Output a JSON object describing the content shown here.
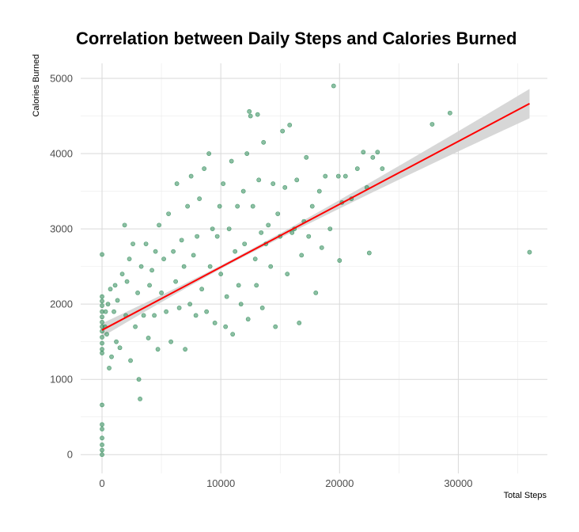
{
  "chart_data": {
    "type": "scatter",
    "title": "Correlation between Daily Steps and Calories Burned",
    "xlabel": "Total Steps",
    "ylabel": "Calories Burned",
    "xlim": [
      -1800,
      37500
    ],
    "ylim": [
      -250,
      5200
    ],
    "x_ticks": [
      0,
      10000,
      20000,
      30000
    ],
    "x_tick_labels": [
      "0",
      "10000",
      "20000",
      "30000"
    ],
    "y_ticks": [
      0,
      1000,
      2000,
      3000,
      4000,
      5000
    ],
    "y_tick_labels": [
      "0",
      "1000",
      "2000",
      "3000",
      "4000",
      "5000"
    ],
    "grid": true,
    "point_color": "#2e8b57",
    "line_color": "#ff0000",
    "band_color": "#d3d3d3",
    "regression": {
      "x_start": 0,
      "y_start": 1655,
      "x_end": 36000,
      "y_end": 4665,
      "ci_start": 90,
      "ci_end": 195
    },
    "series": [
      {
        "values": [
          [
            0,
            0
          ],
          [
            0,
            60
          ],
          [
            0,
            130
          ],
          [
            0,
            220
          ],
          [
            0,
            340
          ],
          [
            0,
            400
          ],
          [
            0,
            660
          ],
          [
            0,
            1350
          ],
          [
            0,
            1400
          ],
          [
            0,
            1480
          ],
          [
            0,
            1560
          ],
          [
            0,
            1640
          ],
          [
            0,
            1700
          ],
          [
            0,
            1760
          ],
          [
            0,
            1830
          ],
          [
            0,
            1900
          ],
          [
            0,
            1980
          ],
          [
            0,
            2040
          ],
          [
            0,
            2100
          ],
          [
            0,
            2660
          ],
          [
            250,
            1700
          ],
          [
            300,
            1900
          ],
          [
            400,
            1600
          ],
          [
            500,
            2000
          ],
          [
            600,
            1150
          ],
          [
            700,
            2200
          ],
          [
            800,
            1300
          ],
          [
            1000,
            1900
          ],
          [
            1100,
            2250
          ],
          [
            1200,
            1500
          ],
          [
            1300,
            2050
          ],
          [
            1500,
            1420
          ],
          [
            1700,
            2400
          ],
          [
            1900,
            3050
          ],
          [
            2000,
            1850
          ],
          [
            2100,
            2300
          ],
          [
            2300,
            2600
          ],
          [
            2400,
            1250
          ],
          [
            2600,
            2800
          ],
          [
            2800,
            1700
          ],
          [
            3000,
            2150
          ],
          [
            3100,
            1000
          ],
          [
            3200,
            740
          ],
          [
            3300,
            2500
          ],
          [
            3500,
            1850
          ],
          [
            3700,
            2800
          ],
          [
            3900,
            1550
          ],
          [
            4000,
            2250
          ],
          [
            4200,
            2450
          ],
          [
            4400,
            1850
          ],
          [
            4500,
            2700
          ],
          [
            4700,
            1400
          ],
          [
            4800,
            3050
          ],
          [
            5000,
            2150
          ],
          [
            5200,
            2600
          ],
          [
            5400,
            1900
          ],
          [
            5600,
            3200
          ],
          [
            5800,
            1500
          ],
          [
            6000,
            2700
          ],
          [
            6200,
            2300
          ],
          [
            6300,
            3600
          ],
          [
            6500,
            1950
          ],
          [
            6700,
            2850
          ],
          [
            6900,
            2500
          ],
          [
            7000,
            1400
          ],
          [
            7200,
            3300
          ],
          [
            7400,
            2000
          ],
          [
            7500,
            3700
          ],
          [
            7700,
            2650
          ],
          [
            7900,
            1850
          ],
          [
            8000,
            2900
          ],
          [
            8200,
            3400
          ],
          [
            8400,
            2200
          ],
          [
            8600,
            3800
          ],
          [
            8800,
            1900
          ],
          [
            9000,
            4000
          ],
          [
            9100,
            2500
          ],
          [
            9300,
            3000
          ],
          [
            9500,
            1750
          ],
          [
            9700,
            2900
          ],
          [
            9900,
            3300
          ],
          [
            10000,
            2400
          ],
          [
            10200,
            3600
          ],
          [
            10400,
            1700
          ],
          [
            10500,
            2100
          ],
          [
            10700,
            3000
          ],
          [
            10900,
            3900
          ],
          [
            11000,
            1600
          ],
          [
            11200,
            2700
          ],
          [
            11400,
            3300
          ],
          [
            11500,
            2250
          ],
          [
            11700,
            2000
          ],
          [
            11900,
            3500
          ],
          [
            12000,
            2800
          ],
          [
            12200,
            4000
          ],
          [
            12300,
            1800
          ],
          [
            12400,
            4560
          ],
          [
            12500,
            4500
          ],
          [
            12700,
            3300
          ],
          [
            12900,
            2600
          ],
          [
            13000,
            2250
          ],
          [
            13100,
            4520
          ],
          [
            13200,
            3650
          ],
          [
            13400,
            2950
          ],
          [
            13500,
            1950
          ],
          [
            13600,
            4150
          ],
          [
            13800,
            2800
          ],
          [
            14000,
            3050
          ],
          [
            14200,
            2500
          ],
          [
            14400,
            3600
          ],
          [
            14600,
            1700
          ],
          [
            14800,
            3200
          ],
          [
            15000,
            2900
          ],
          [
            15200,
            4300
          ],
          [
            15400,
            3550
          ],
          [
            15600,
            2400
          ],
          [
            15800,
            4380
          ],
          [
            16000,
            2950
          ],
          [
            16200,
            3000
          ],
          [
            16400,
            3650
          ],
          [
            16600,
            1750
          ],
          [
            16800,
            2650
          ],
          [
            17000,
            3100
          ],
          [
            17200,
            3950
          ],
          [
            17400,
            2900
          ],
          [
            17700,
            3300
          ],
          [
            18000,
            2150
          ],
          [
            18300,
            3500
          ],
          [
            18500,
            2750
          ],
          [
            18800,
            3700
          ],
          [
            19200,
            3000
          ],
          [
            19500,
            4900
          ],
          [
            19900,
            3700
          ],
          [
            20000,
            2580
          ],
          [
            20200,
            3350
          ],
          [
            20500,
            3700
          ],
          [
            21000,
            3400
          ],
          [
            21500,
            3800
          ],
          [
            22000,
            4020
          ],
          [
            22300,
            3550
          ],
          [
            22500,
            2680
          ],
          [
            22800,
            3950
          ],
          [
            23200,
            4020
          ],
          [
            23600,
            3800
          ],
          [
            27800,
            4390
          ],
          [
            29300,
            4540
          ],
          [
            36000,
            2690
          ]
        ]
      }
    ]
  }
}
